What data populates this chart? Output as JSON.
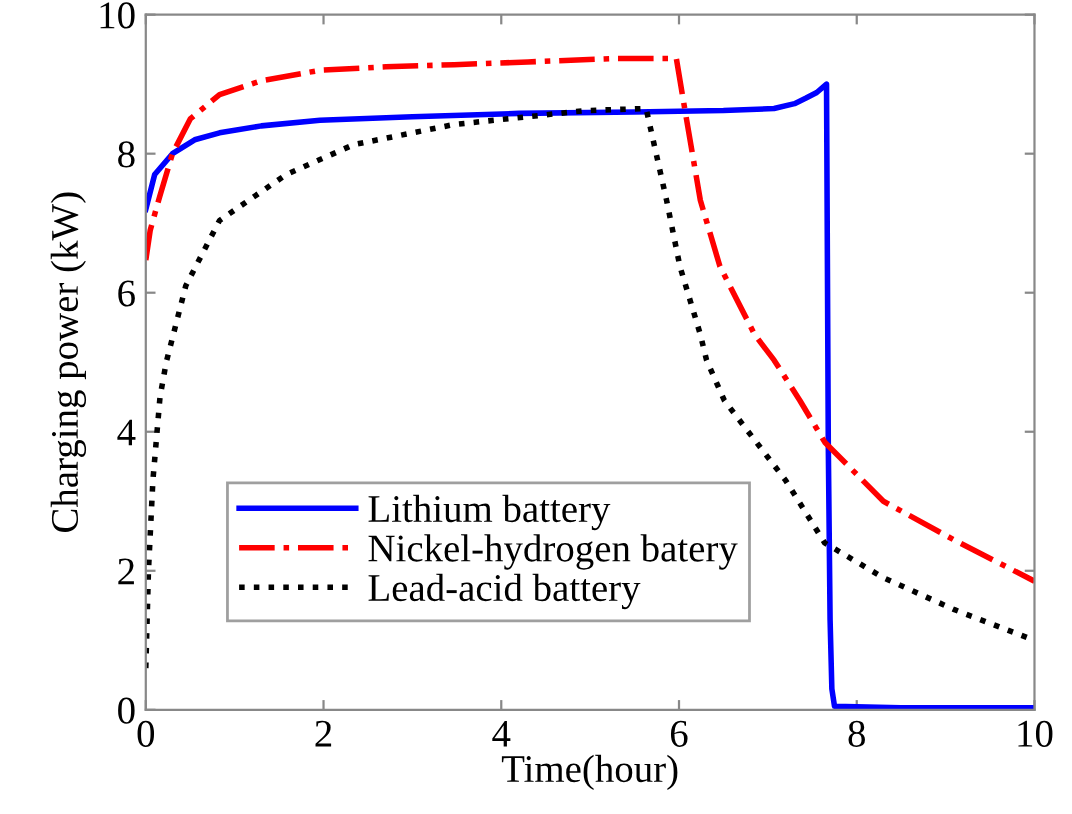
{
  "chart_data": {
    "type": "line",
    "xlabel": "Time(hour)",
    "ylabel": "Charging power (kW)",
    "xlim": [
      0,
      10
    ],
    "ylim": [
      0,
      10
    ],
    "xticks": [
      0,
      2,
      4,
      6,
      8,
      10
    ],
    "yticks": [
      0,
      2,
      4,
      6,
      8,
      10
    ],
    "grid": false,
    "legend": "lower left",
    "series": [
      {
        "name": "Lithium battery",
        "color": "#0000ff",
        "line_style": "solid",
        "x": [
          0,
          0.1,
          0.3,
          0.55,
          0.83,
          1.3,
          1.96,
          3,
          4.2,
          5.5,
          6.5,
          7.07,
          7.3,
          7.43,
          7.55,
          7.66,
          7.68,
          7.7,
          7.72,
          7.75,
          8.5,
          10
        ],
        "values": [
          7.2,
          7.7,
          8.0,
          8.2,
          8.3,
          8.4,
          8.48,
          8.53,
          8.58,
          8.6,
          8.62,
          8.65,
          8.72,
          8.8,
          8.88,
          9.0,
          3.8,
          1.3,
          0.3,
          0.05,
          0.03,
          0.03
        ]
      },
      {
        "name": "Nickel-hydrogen batery",
        "color": "#ff0000",
        "line_style": "dashdot",
        "x": [
          0,
          0.05,
          0.16,
          0.3,
          0.5,
          0.83,
          1.3,
          1.96,
          2.7,
          3.47,
          4.3,
          5.3,
          5.97,
          6.06,
          6.24,
          6.46,
          6.85,
          7.07,
          7.36,
          7.64,
          8.3,
          9.1,
          10
        ],
        "values": [
          6.47,
          6.9,
          7.4,
          8.0,
          8.5,
          8.85,
          9.05,
          9.2,
          9.25,
          9.28,
          9.32,
          9.37,
          9.37,
          8.68,
          7.33,
          6.38,
          5.4,
          5.03,
          4.45,
          3.85,
          3.0,
          2.44,
          1.85
        ]
      },
      {
        "name": "Lead-acid battery",
        "color": "#000000",
        "line_style": "dotted",
        "x": [
          0,
          0.03,
          0.08,
          0.16,
          0.23,
          0.45,
          0.83,
          1.58,
          2.34,
          3.47,
          4.95,
          5.63,
          5.86,
          6.01,
          6.24,
          6.31,
          6.51,
          7.2,
          7.64,
          8.3,
          9.1,
          10
        ],
        "values": [
          0.6,
          2.0,
          3.3,
          4.5,
          5.0,
          6.1,
          7.04,
          7.7,
          8.13,
          8.42,
          8.62,
          8.65,
          7.33,
          6.38,
          5.4,
          5.03,
          4.45,
          3.3,
          2.4,
          1.9,
          1.44,
          1.0
        ]
      }
    ]
  }
}
